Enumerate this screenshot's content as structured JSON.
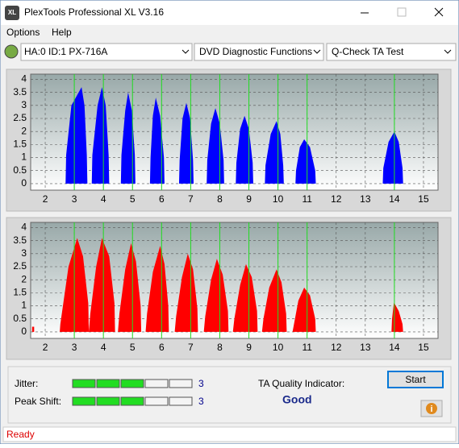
{
  "window": {
    "icon_text": "XL",
    "title": "PlexTools Professional XL V3.16"
  },
  "menu": [
    "Options",
    "Help"
  ],
  "toolbar": {
    "drive": "HA:0 ID:1  PX-716A",
    "function": "DVD Diagnostic Functions",
    "test": "Q-Check TA Test"
  },
  "chart_data": [
    {
      "type": "area",
      "xlim": [
        1.5,
        15.5
      ],
      "xticks": [
        2,
        3,
        4,
        5,
        6,
        7,
        8,
        9,
        10,
        11,
        12,
        13,
        14,
        15
      ],
      "ylim": [
        -0.25,
        4.2
      ],
      "yticks": [
        0,
        0.5,
        1,
        1.5,
        2,
        2.5,
        3,
        3.5,
        4
      ],
      "grid": true,
      "markers": [
        3,
        4,
        5,
        6,
        7,
        8,
        9,
        10,
        11,
        14
      ],
      "marker_color": "#22dd22",
      "series": [
        {
          "color": "#0000ff",
          "x": [
            2.7,
            2.72,
            2.9,
            3.25,
            3.35,
            3.43,
            3.45,
            null,
            3.6,
            3.62,
            3.8,
            3.95,
            4.08,
            4.18,
            4.2,
            null,
            4.6,
            4.62,
            4.75,
            4.85,
            4.98,
            5.08,
            5.1,
            null,
            5.6,
            5.62,
            5.7,
            5.8,
            5.95,
            6.08,
            6.1,
            null,
            6.6,
            6.62,
            6.72,
            6.85,
            6.98,
            7.08,
            7.1,
            null,
            7.55,
            7.57,
            7.7,
            7.85,
            8.0,
            8.13,
            8.15,
            null,
            8.55,
            8.57,
            8.7,
            8.85,
            9.0,
            9.13,
            9.15,
            null,
            9.55,
            9.57,
            9.75,
            9.95,
            10.08,
            10.18,
            10.2,
            null,
            10.6,
            10.62,
            10.75,
            10.9,
            11.1,
            11.28,
            11.3,
            null,
            13.6,
            13.62,
            13.8,
            14.0,
            14.15,
            14.28,
            14.3
          ],
          "values": [
            0,
            1.1,
            3.0,
            3.7,
            3.0,
            1.1,
            0,
            null,
            0,
            1.1,
            3.0,
            3.7,
            3.0,
            1.1,
            0,
            null,
            0,
            1.1,
            2.8,
            3.5,
            2.8,
            1.1,
            0,
            null,
            0,
            1.0,
            2.6,
            3.3,
            2.6,
            1.0,
            0,
            null,
            0,
            0.9,
            2.5,
            3.1,
            2.5,
            0.9,
            0,
            null,
            0,
            0.9,
            2.3,
            2.9,
            2.3,
            0.9,
            0,
            null,
            0,
            0.8,
            2.1,
            2.6,
            2.1,
            0.8,
            0,
            null,
            0,
            0.7,
            1.9,
            2.4,
            1.9,
            0.7,
            0,
            null,
            0,
            0.5,
            1.4,
            1.7,
            1.4,
            0.5,
            0,
            null,
            0,
            0.6,
            1.6,
            2.0,
            1.6,
            0.6,
            0
          ]
        }
      ]
    },
    {
      "type": "area",
      "xlim": [
        1.5,
        15.5
      ],
      "xticks": [
        2,
        3,
        4,
        5,
        6,
        7,
        8,
        9,
        10,
        11,
        12,
        13,
        14,
        15
      ],
      "ylim": [
        -0.25,
        4.2
      ],
      "yticks": [
        0,
        0.5,
        1,
        1.5,
        2,
        2.5,
        3,
        3.5,
        4
      ],
      "grid": true,
      "markers": [
        3,
        4,
        5,
        6,
        7,
        8,
        9,
        10,
        11,
        14
      ],
      "marker_color": "#22dd22",
      "series": [
        {
          "color": "#ff0000",
          "x": [
            1.55,
            1.55,
            1.62,
            1.62,
            null,
            2.5,
            2.52,
            2.8,
            3.1,
            3.3,
            3.48,
            3.5,
            null,
            3.5,
            3.55,
            3.75,
            3.95,
            4.2,
            4.38,
            4.4,
            null,
            4.5,
            4.55,
            4.75,
            4.95,
            5.12,
            5.28,
            5.3,
            null,
            5.45,
            5.5,
            5.7,
            5.95,
            6.1,
            6.23,
            6.25,
            null,
            6.45,
            6.5,
            6.7,
            6.9,
            7.08,
            7.23,
            7.25,
            null,
            7.45,
            7.5,
            7.7,
            7.9,
            8.1,
            8.28,
            8.3,
            null,
            8.45,
            8.5,
            8.7,
            8.9,
            9.1,
            9.28,
            9.3,
            null,
            9.45,
            9.5,
            9.7,
            9.95,
            10.12,
            10.28,
            10.3,
            null,
            10.5,
            10.55,
            10.7,
            10.9,
            11.1,
            11.28,
            11.3,
            null,
            13.9,
            13.92,
            13.98,
            14.0,
            14.15,
            14.28,
            14.3
          ],
          "values": [
            0,
            0.2,
            0.2,
            0,
            null,
            0,
            0.3,
            2.5,
            3.6,
            2.9,
            1.1,
            0,
            null,
            0,
            0.7,
            2.5,
            3.6,
            2.9,
            1.1,
            0,
            null,
            0,
            0.7,
            2.4,
            3.4,
            2.7,
            1.0,
            0,
            null,
            0,
            0.7,
            2.3,
            3.3,
            2.6,
            1.0,
            0,
            null,
            0,
            0.6,
            2.1,
            3.0,
            2.4,
            0.9,
            0,
            null,
            0,
            0.6,
            2.0,
            2.8,
            2.2,
            0.8,
            0,
            null,
            0,
            0.5,
            1.8,
            2.6,
            2.1,
            0.8,
            0,
            null,
            0,
            0.5,
            1.7,
            2.4,
            1.9,
            0.7,
            0,
            null,
            0,
            0.3,
            1.2,
            1.7,
            1.4,
            0.5,
            0,
            null,
            0,
            0.5,
            1.1,
            1.1,
            0.8,
            0.3,
            0
          ]
        }
      ]
    }
  ],
  "panel": {
    "jitter": {
      "label": "Jitter:",
      "value": 3
    },
    "peak_shift": {
      "label": "Peak Shift:",
      "value": 3
    },
    "ta_label": "TA Quality Indicator:",
    "ta_value": "Good",
    "start": "Start",
    "info": "i"
  },
  "status": "Ready"
}
